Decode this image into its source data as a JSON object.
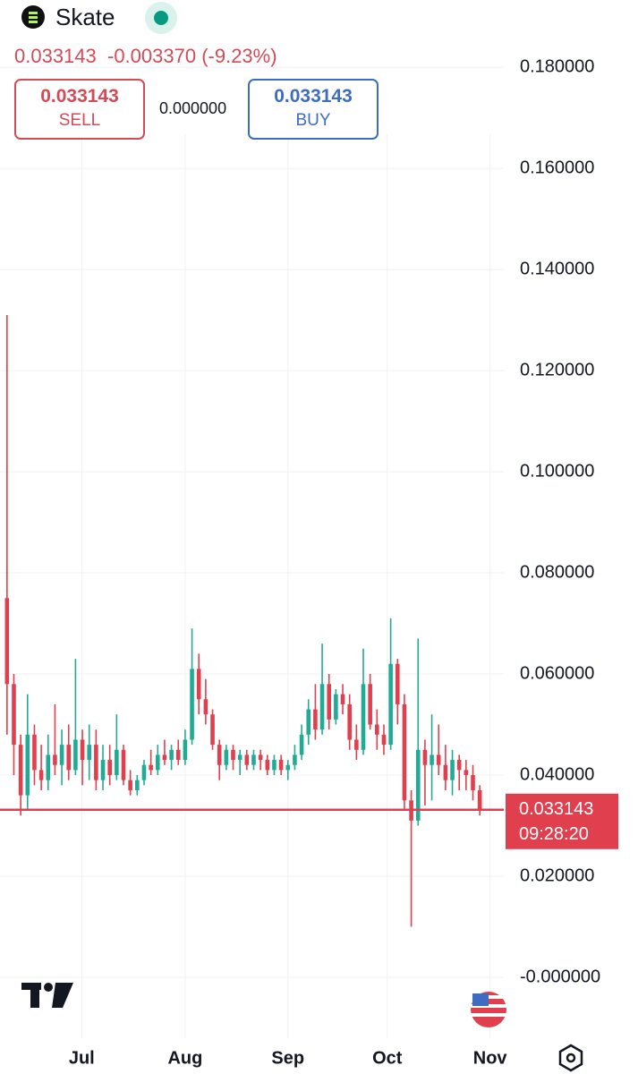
{
  "header": {
    "symbol": "Skate",
    "last": "0.033143",
    "change": "-0.003370 (-9.23%)",
    "sell_price": "0.033143",
    "sell_label": "SELL",
    "spread": "0.000000",
    "buy_price": "0.033143",
    "buy_label": "BUY"
  },
  "chart_data": {
    "type": "candlestick",
    "up_color": "#22ab94",
    "down_color": "#e0404e",
    "open": [
      0.075,
      0.058,
      0.046,
      0.036,
      0.048,
      0.041,
      0.039,
      0.044,
      0.042,
      0.046,
      0.041,
      0.047,
      0.043,
      0.046,
      0.039,
      0.043,
      0.04,
      0.045,
      0.039,
      0.037,
      0.039,
      0.042,
      0.041,
      0.044,
      0.043,
      0.045,
      0.043,
      0.047,
      0.061,
      0.055,
      0.052,
      0.046,
      0.042,
      0.045,
      0.043,
      0.044,
      0.042,
      0.044,
      0.043,
      0.041,
      0.043,
      0.041,
      0.042,
      0.044,
      0.048,
      0.053,
      0.049,
      0.058,
      0.051,
      0.056,
      0.054,
      0.047,
      0.045,
      0.058,
      0.05,
      0.048,
      0.046,
      0.062,
      0.054,
      0.035,
      0.031,
      0.045,
      0.042,
      0.044,
      0.042,
      0.039,
      0.043,
      0.041,
      0.04,
      0.037
    ],
    "high": [
      0.131,
      0.06,
      0.048,
      0.056,
      0.05,
      0.046,
      0.048,
      0.054,
      0.049,
      0.05,
      0.063,
      0.049,
      0.05,
      0.049,
      0.046,
      0.046,
      0.052,
      0.046,
      0.041,
      0.04,
      0.043,
      0.045,
      0.046,
      0.047,
      0.046,
      0.047,
      0.049,
      0.069,
      0.064,
      0.059,
      0.053,
      0.047,
      0.046,
      0.046,
      0.045,
      0.045,
      0.045,
      0.045,
      0.044,
      0.044,
      0.044,
      0.043,
      0.046,
      0.05,
      0.055,
      0.058,
      0.066,
      0.06,
      0.057,
      0.058,
      0.056,
      0.05,
      0.065,
      0.06,
      0.053,
      0.05,
      0.071,
      0.063,
      0.056,
      0.037,
      0.067,
      0.047,
      0.052,
      0.05,
      0.046,
      0.045,
      0.044,
      0.043,
      0.042,
      0.038
    ],
    "low": [
      0.048,
      0.04,
      0.032,
      0.033,
      0.038,
      0.037,
      0.037,
      0.04,
      0.038,
      0.039,
      0.04,
      0.038,
      0.039,
      0.037,
      0.037,
      0.038,
      0.039,
      0.038,
      0.036,
      0.036,
      0.038,
      0.04,
      0.04,
      0.042,
      0.041,
      0.042,
      0.042,
      0.046,
      0.052,
      0.05,
      0.045,
      0.039,
      0.041,
      0.041,
      0.04,
      0.041,
      0.041,
      0.041,
      0.04,
      0.04,
      0.04,
      0.039,
      0.041,
      0.043,
      0.046,
      0.047,
      0.048,
      0.049,
      0.05,
      0.052,
      0.045,
      0.043,
      0.044,
      0.049,
      0.045,
      0.044,
      0.045,
      0.05,
      0.033,
      0.01,
      0.03,
      0.034,
      0.035,
      0.04,
      0.037,
      0.036,
      0.037,
      0.037,
      0.035,
      0.032
    ],
    "close": [
      0.058,
      0.046,
      0.036,
      0.048,
      0.041,
      0.039,
      0.044,
      0.042,
      0.046,
      0.041,
      0.047,
      0.043,
      0.046,
      0.039,
      0.043,
      0.04,
      0.045,
      0.039,
      0.037,
      0.039,
      0.042,
      0.041,
      0.044,
      0.043,
      0.045,
      0.043,
      0.047,
      0.061,
      0.055,
      0.052,
      0.046,
      0.042,
      0.045,
      0.043,
      0.044,
      0.042,
      0.044,
      0.043,
      0.041,
      0.043,
      0.041,
      0.042,
      0.044,
      0.048,
      0.053,
      0.049,
      0.058,
      0.051,
      0.056,
      0.054,
      0.047,
      0.045,
      0.058,
      0.05,
      0.048,
      0.046,
      0.062,
      0.054,
      0.035,
      0.031,
      0.045,
      0.042,
      0.044,
      0.042,
      0.039,
      0.043,
      0.041,
      0.04,
      0.037,
      0.0331
    ],
    "ylim": [
      -0.0085,
      0.1933
    ],
    "yticks": [
      {
        "value": 0.18,
        "label": "0.180000"
      },
      {
        "value": 0.16,
        "label": "0.160000"
      },
      {
        "value": 0.14,
        "label": "0.140000"
      },
      {
        "value": 0.12,
        "label": "0.120000"
      },
      {
        "value": 0.1,
        "label": "0.100000"
      },
      {
        "value": 0.08,
        "label": "0.080000"
      },
      {
        "value": 0.06,
        "label": "0.060000"
      },
      {
        "value": 0.04,
        "label": "0.040000"
      },
      {
        "value": 0.02,
        "label": "0.020000"
      },
      {
        "value": 0,
        "label": "-0.000000"
      }
    ],
    "xlim": [
      0,
      70
    ],
    "xticks": [
      {
        "value": 11.4,
        "label": "Jul"
      },
      {
        "value": 26.5,
        "label": "Aug"
      },
      {
        "value": 41.5,
        "label": "Sep"
      },
      {
        "value": 56,
        "label": "Oct"
      },
      {
        "value": 71,
        "label": "Nov"
      }
    ],
    "grid": true,
    "last_price": 0.033143,
    "countdown": "09:28:20"
  }
}
